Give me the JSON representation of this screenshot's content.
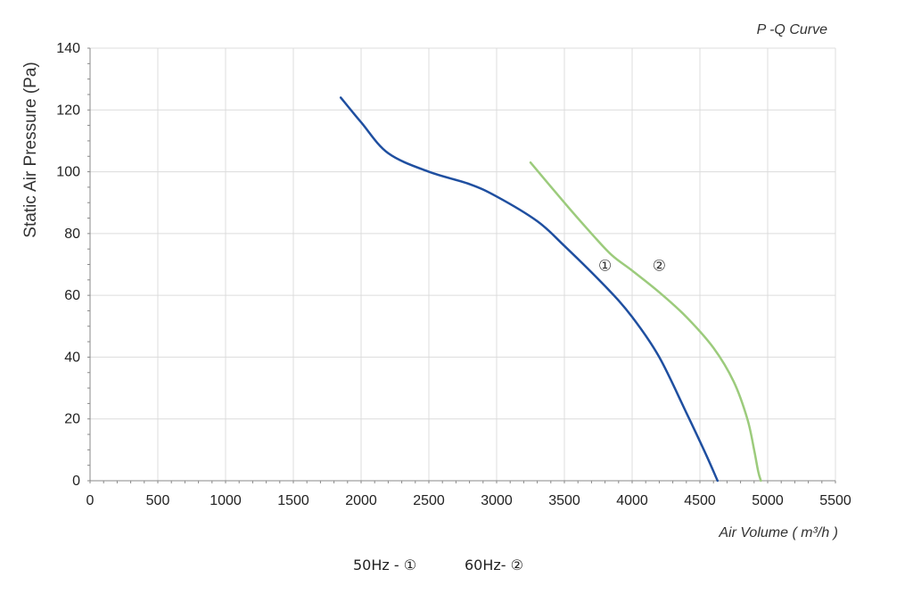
{
  "chart_data": {
    "type": "line",
    "title": "P -Q Curve",
    "xlabel": "Air Volume ( m³/h )",
    "ylabel": "Static Air Pressure  (Pa)",
    "xlim": [
      0,
      5500
    ],
    "ylim": [
      0,
      140
    ],
    "x_ticks": [
      "0",
      "500",
      "1000",
      "1500",
      "2000",
      "2500",
      "3000",
      "3500",
      "4000",
      "4500",
      "5000",
      "5500"
    ],
    "y_ticks": [
      "0",
      "20",
      "40",
      "60",
      "80",
      "100",
      "120",
      "140"
    ],
    "grid": true,
    "series": [
      {
        "name": "①",
        "color": "#1f4fa0",
        "x": [
          1850,
          2000,
          2200,
          2500,
          2800,
          3000,
          3300,
          3500,
          3800,
          4000,
          4200,
          4400,
          4550,
          4630
        ],
        "y": [
          124,
          116,
          106,
          100,
          96,
          92,
          84,
          76,
          63,
          53,
          40,
          22,
          8,
          0
        ]
      },
      {
        "name": "②",
        "color": "#9ccb7c",
        "x": [
          3250,
          3500,
          3700,
          3850,
          4000,
          4200,
          4400,
          4600,
          4750,
          4850,
          4900,
          4930,
          4950
        ],
        "y": [
          103,
          90,
          80,
          73,
          68,
          61,
          53,
          43,
          32,
          20,
          10,
          3,
          0
        ]
      }
    ],
    "series_labels": [
      {
        "text": "①",
        "x": 3800,
        "y": 68
      },
      {
        "text": "②",
        "x": 4200,
        "y": 68
      }
    ]
  },
  "legend": {
    "item1": "50Hz -  ①",
    "item2": "60Hz-  ②"
  }
}
